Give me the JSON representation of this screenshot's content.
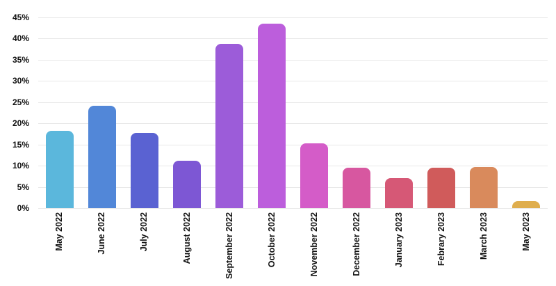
{
  "chart_data": {
    "type": "bar",
    "title": "",
    "xlabel": "",
    "ylabel": "",
    "categories": [
      "May 2022",
      "June 2022",
      "July 2022",
      "August 2022",
      "September 2022",
      "October 2022",
      "November 2022",
      "December 2022",
      "January 2023",
      "Febrary 2023",
      "March 2023",
      "May 2023"
    ],
    "values": [
      18.2,
      24.1,
      17.8,
      11.2,
      38.8,
      43.5,
      15.3,
      9.5,
      7.1,
      9.5,
      9.7,
      1.6
    ],
    "bar_colors": [
      "#5bb7dc",
      "#5287d8",
      "#5a62d2",
      "#7d57d4",
      "#9c5cd9",
      "#bc5edc",
      "#d45cc8",
      "#d757a0",
      "#d65876",
      "#d05b5b",
      "#d98a5c",
      "#dfae4e"
    ],
    "ylim": [
      0,
      45
    ],
    "ytick_step": 5,
    "ytick_labels": [
      "0%",
      "5%",
      "10%",
      "15%",
      "20%",
      "25%",
      "30%",
      "35%",
      "40%",
      "45%"
    ],
    "grid": "horizontal",
    "gridline_color": "#e8e8e8",
    "text_color": "#111111",
    "background": "#ffffff",
    "legend": "none"
  }
}
